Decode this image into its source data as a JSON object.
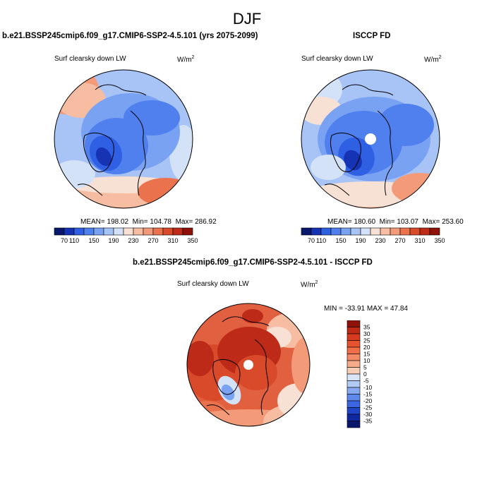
{
  "header": {
    "title": "DJF"
  },
  "palette": {
    "diverging": [
      "#08176b",
      "#1633b4",
      "#2f5fe3",
      "#4f80ee",
      "#7aa2f3",
      "#a8c3f6",
      "#d4e2f8",
      "#f7e0d4",
      "#f6bda2",
      "#f39a78",
      "#ea734e",
      "#d94a2b",
      "#bd2a17",
      "#8f1208"
    ],
    "land_outline": "#000000"
  },
  "chart_data": [
    {
      "type": "heatmap",
      "projection": "north-polar-stereographic",
      "title": "b.e21.BSSP245cmip6.f09_g17.CMIP6-SSP2-4.5.101 (yrs 2075-2099)",
      "variable": "Surf clearsky down LW",
      "units": "W/m",
      "units_sup": "2",
      "stats": {
        "mean_label": "MEAN=",
        "mean": "198.02",
        "min_label": "Min=",
        "min": "104.78",
        "max_label": "Max=",
        "max": "286.92"
      },
      "colorbar": {
        "orientation": "horizontal",
        "levels": [
          70,
          90,
          110,
          130,
          150,
          170,
          190,
          210,
          230,
          250,
          270,
          290,
          310,
          330,
          350
        ],
        "tick_labels": [
          "70",
          "110",
          "150",
          "190",
          "230",
          "270",
          "310",
          "350"
        ]
      }
    },
    {
      "type": "heatmap",
      "projection": "north-polar-stereographic",
      "title": "ISCCP FD",
      "variable": "Surf clearsky down LW",
      "units": "W/m",
      "units_sup": "2",
      "stats": {
        "mean_label": "MEAN=",
        "mean": "180.60",
        "min_label": "Min=",
        "min": "103.07",
        "max_label": "Max=",
        "max": "253.60"
      },
      "colorbar": {
        "orientation": "horizontal",
        "levels": [
          70,
          90,
          110,
          130,
          150,
          170,
          190,
          210,
          230,
          250,
          270,
          290,
          310,
          330,
          350
        ],
        "tick_labels": [
          "70",
          "110",
          "150",
          "190",
          "230",
          "270",
          "310",
          "350"
        ]
      }
    },
    {
      "type": "heatmap",
      "projection": "north-polar-stereographic",
      "title": "b.e21.BSSP245cmip6.f09_g17.CMIP6-SSP2-4.5.101 - ISCCP FD",
      "variable": "Surf clearsky down LW",
      "units": "W/m",
      "units_sup": "2",
      "stats": {
        "min_label": "MIN =",
        "min": "-33.91",
        "max_label": "MAX =",
        "max": "47.84"
      },
      "colorbar": {
        "orientation": "vertical",
        "levels": [
          -35,
          -30,
          -25,
          -20,
          -15,
          -10,
          -5,
          0,
          5,
          10,
          15,
          20,
          25,
          30,
          35
        ],
        "tick_labels": [
          "35",
          "30",
          "25",
          "20",
          "15",
          "10",
          "5",
          "0",
          "-5",
          "-10",
          "-15",
          "-20",
          "-25",
          "-30",
          "-35"
        ]
      }
    }
  ]
}
